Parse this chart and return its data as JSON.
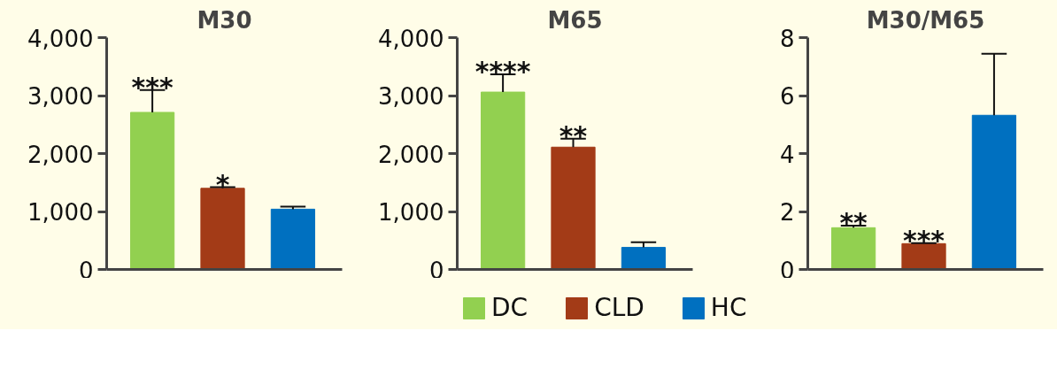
{
  "chart_data": [
    {
      "type": "bar",
      "title": "M30",
      "categories": [
        null,
        null,
        null
      ],
      "tick_labels": "y",
      "grid": false,
      "series": [
        {
          "color": "#92d050",
          "values": [
            2710,
            null,
            null
          ],
          "errors": [
            [
              2710,
              3097
            ],
            null,
            null
          ]
        },
        {
          "color": "#a33b17",
          "values": [
            null,
            1400,
            null
          ],
          "errors": [
            null,
            [
              1400,
              1419
            ],
            null
          ]
        },
        {
          "color": "#0070c0",
          "values": [
            null,
            null,
            1040
          ],
          "errors": [
            null,
            null,
            [
              1040,
              1085
            ]
          ]
        }
      ],
      "ylim": [
        0,
        4000
      ],
      "yticks": [
        0,
        {
          "value": 1000,
          "label": "1,000"
        },
        {
          "value": 2000,
          "label": "2,000"
        },
        {
          "value": 3000,
          "label": "3,000"
        },
        {
          "value": 4000,
          "label": "4,000"
        }
      ],
      "annotations": [
        "***",
        "*"
      ]
    },
    {
      "type": "bar",
      "title": "M65",
      "categories": [
        null,
        null,
        null
      ],
      "tick_labels": "y",
      "legend": "bottom",
      "grid": false,
      "series": [
        {
          "name": "DC",
          "color": "#92d050",
          "values": [
            3060,
            null,
            null
          ],
          "errors": [
            [
              3060,
              3366
            ],
            null,
            null
          ]
        },
        {
          "name": "CLD",
          "color": "#a33b17",
          "values": [
            null,
            2110,
            null
          ],
          "errors": [
            null,
            [
              2110,
              2256
            ],
            null
          ]
        },
        {
          "name": "HC",
          "color": "#0070c0",
          "values": [
            null,
            null,
            380
          ],
          "errors": [
            null,
            null,
            [
              380,
              469
            ]
          ]
        }
      ],
      "ylim": [
        0,
        4000
      ],
      "yticks": [
        0,
        {
          "value": 1000,
          "label": "1,000"
        },
        {
          "value": 2000,
          "label": "2,000"
        },
        {
          "value": 3000,
          "label": "3,000"
        },
        {
          "value": 4000,
          "label": "4,000"
        }
      ],
      "annotations": [
        "****",
        "**"
      ]
    },
    {
      "type": "bar",
      "title": "M30/M65",
      "categories": [
        null,
        null,
        null
      ],
      "tick_labels": "y",
      "grid": false,
      "series": [
        {
          "color": "#92d050",
          "values": [
            1.44,
            null,
            null
          ],
          "errors": [
            [
              1.44,
              1.51
            ],
            null,
            null
          ]
        },
        {
          "color": "#a33b17",
          "values": [
            null,
            0.89,
            null
          ],
          "errors": [
            null,
            [
              0.89,
              0.91
            ],
            null
          ]
        },
        {
          "color": "#0070c0",
          "values": [
            null,
            null,
            5.32
          ],
          "errors": [
            null,
            null,
            [
              5.32,
              7.44
            ]
          ]
        }
      ],
      "ylim": [
        0,
        8
      ],
      "yticks": [
        0,
        2,
        4,
        6,
        8
      ],
      "annotations": [
        "**",
        "***"
      ]
    }
  ]
}
